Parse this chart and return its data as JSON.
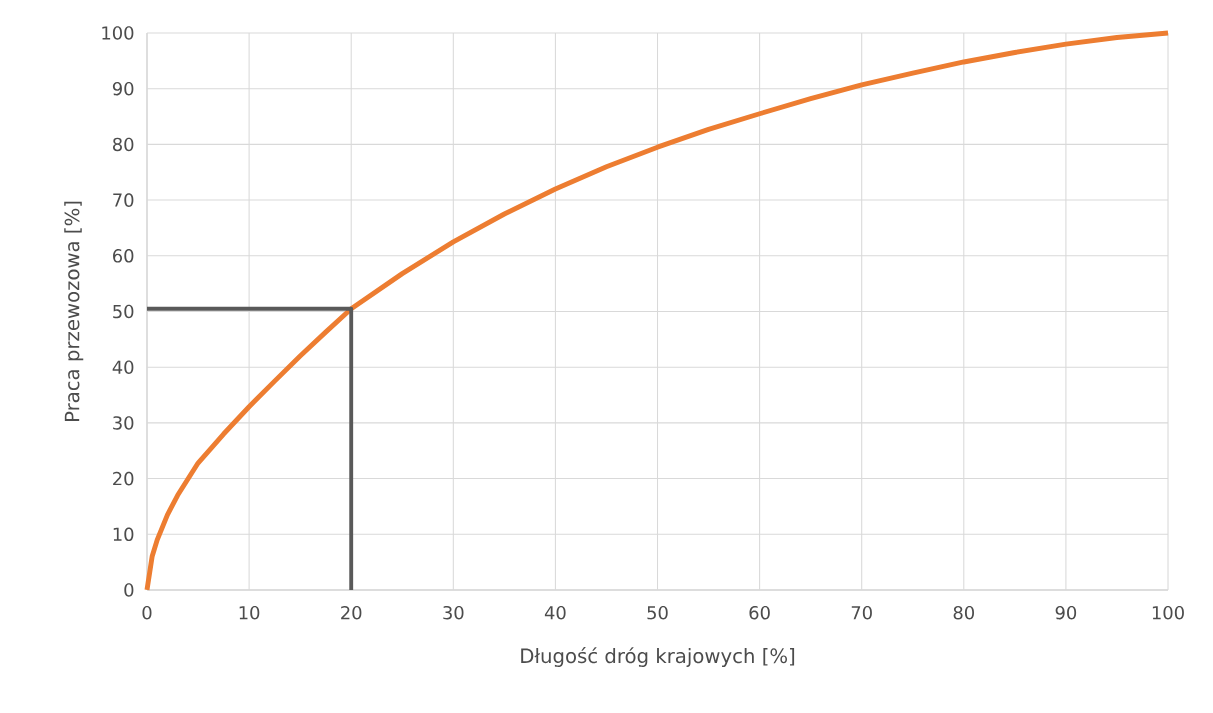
{
  "chart_data": {
    "type": "line",
    "xlabel": "Długość dróg krajowych [%]",
    "ylabel": "Praca przewozowa [%]",
    "series": [
      {
        "color": "#ed7d31",
        "x": [
          0,
          0.5,
          1,
          2,
          3,
          5,
          7.5,
          10,
          12.5,
          15,
          17.5,
          20,
          25,
          30,
          35,
          40,
          45,
          50,
          55,
          60,
          65,
          70,
          75,
          80,
          85,
          90,
          95,
          100
        ],
        "values": [
          0,
          6,
          9,
          13.5,
          17,
          22.8,
          28,
          32.9,
          37.5,
          42,
          46.3,
          50.5,
          56.8,
          62.5,
          67.5,
          72,
          76,
          79.5,
          82.7,
          85.5,
          88.2,
          90.7,
          92.8,
          94.8,
          96.5,
          98,
          99.2,
          100
        ]
      },
      {
        "color": "#595959",
        "x": [
          0,
          20,
          20
        ],
        "values": [
          50.5,
          50.5,
          0
        ]
      }
    ],
    "xlim": [
      0,
      100
    ],
    "ylim": [
      0,
      100
    ],
    "xticks": [
      0,
      10,
      20,
      30,
      40,
      50,
      60,
      70,
      80,
      90,
      100
    ],
    "yticks": [
      0,
      10,
      20,
      30,
      40,
      50,
      60,
      70,
      80,
      90,
      100
    ],
    "grid": true,
    "legend": false,
    "marker": "none",
    "line_style": "solid"
  }
}
